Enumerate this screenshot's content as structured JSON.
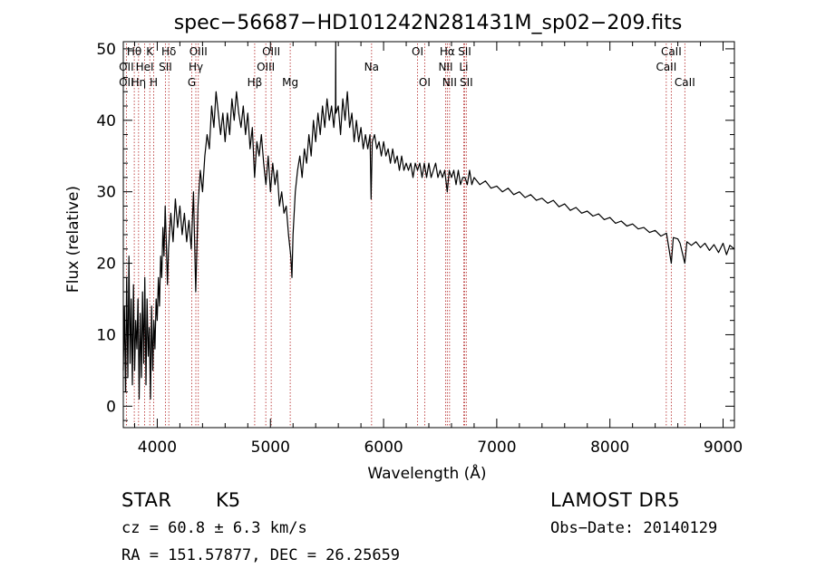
{
  "chart_data": {
    "type": "line",
    "title": "spec−56687−HD101242N281431M_sp02−209.fits",
    "xlabel": "Wavelength (Å)",
    "ylabel": "Flux (relative)",
    "xlim": [
      3700,
      9100
    ],
    "ylim": [
      -3,
      51
    ],
    "xticks": [
      4000,
      5000,
      6000,
      7000,
      8000,
      9000
    ],
    "yticks": [
      0,
      10,
      20,
      30,
      40,
      50
    ],
    "grid": false,
    "series": [
      {
        "points": [
          [
            3700,
            5
          ],
          [
            3710,
            14
          ],
          [
            3720,
            2
          ],
          [
            3730,
            18
          ],
          [
            3740,
            4
          ],
          [
            3750,
            21
          ],
          [
            3760,
            6
          ],
          [
            3770,
            15
          ],
          [
            3780,
            3
          ],
          [
            3790,
            17
          ],
          [
            3800,
            5
          ],
          [
            3810,
            12
          ],
          [
            3820,
            8
          ],
          [
            3830,
            15
          ],
          [
            3840,
            1
          ],
          [
            3850,
            13
          ],
          [
            3860,
            4
          ],
          [
            3870,
            16
          ],
          [
            3880,
            6
          ],
          [
            3890,
            18
          ],
          [
            3900,
            3
          ],
          [
            3910,
            15
          ],
          [
            3920,
            7
          ],
          [
            3930,
            11
          ],
          [
            3940,
            1
          ],
          [
            3950,
            14
          ],
          [
            3960,
            5
          ],
          [
            3970,
            12
          ],
          [
            3980,
            8
          ],
          [
            3990,
            15
          ],
          [
            4000,
            12
          ],
          [
            4010,
            18
          ],
          [
            4020,
            14
          ],
          [
            4030,
            21
          ],
          [
            4040,
            18
          ],
          [
            4050,
            25
          ],
          [
            4060,
            21
          ],
          [
            4070,
            28
          ],
          [
            4080,
            23
          ],
          [
            4090,
            17
          ],
          [
            4100,
            22
          ],
          [
            4120,
            27
          ],
          [
            4140,
            23
          ],
          [
            4160,
            29
          ],
          [
            4180,
            25
          ],
          [
            4200,
            28
          ],
          [
            4220,
            24
          ],
          [
            4240,
            27
          ],
          [
            4260,
            23
          ],
          [
            4280,
            26
          ],
          [
            4300,
            22
          ],
          [
            4320,
            30
          ],
          [
            4340,
            16
          ],
          [
            4360,
            28
          ],
          [
            4380,
            33
          ],
          [
            4400,
            30
          ],
          [
            4420,
            35
          ],
          [
            4440,
            38
          ],
          [
            4460,
            36
          ],
          [
            4480,
            42
          ],
          [
            4500,
            39
          ],
          [
            4520,
            44
          ],
          [
            4540,
            41
          ],
          [
            4560,
            38
          ],
          [
            4580,
            41
          ],
          [
            4600,
            37
          ],
          [
            4620,
            41
          ],
          [
            4640,
            38
          ],
          [
            4660,
            43
          ],
          [
            4680,
            40
          ],
          [
            4700,
            44
          ],
          [
            4720,
            41
          ],
          [
            4740,
            39
          ],
          [
            4760,
            42
          ],
          [
            4780,
            38
          ],
          [
            4800,
            41
          ],
          [
            4820,
            36
          ],
          [
            4840,
            39
          ],
          [
            4860,
            32
          ],
          [
            4880,
            37
          ],
          [
            4900,
            35
          ],
          [
            4920,
            38
          ],
          [
            4940,
            34
          ],
          [
            4960,
            31
          ],
          [
            4980,
            35
          ],
          [
            5000,
            30
          ],
          [
            5020,
            34
          ],
          [
            5040,
            31
          ],
          [
            5060,
            33
          ],
          [
            5080,
            28
          ],
          [
            5100,
            30
          ],
          [
            5120,
            27
          ],
          [
            5140,
            28
          ],
          [
            5160,
            24
          ],
          [
            5180,
            21
          ],
          [
            5190,
            18
          ],
          [
            5200,
            24
          ],
          [
            5220,
            30
          ],
          [
            5240,
            33
          ],
          [
            5260,
            35
          ],
          [
            5280,
            32
          ],
          [
            5300,
            36
          ],
          [
            5320,
            34
          ],
          [
            5340,
            38
          ],
          [
            5360,
            35
          ],
          [
            5380,
            40
          ],
          [
            5400,
            37
          ],
          [
            5420,
            41
          ],
          [
            5440,
            38
          ],
          [
            5460,
            42
          ],
          [
            5480,
            39
          ],
          [
            5500,
            43
          ],
          [
            5520,
            40
          ],
          [
            5540,
            42
          ],
          [
            5560,
            39
          ],
          [
            5575,
            42
          ],
          [
            5577,
            51
          ],
          [
            5579,
            41
          ],
          [
            5600,
            42
          ],
          [
            5620,
            38
          ],
          [
            5640,
            43
          ],
          [
            5660,
            40
          ],
          [
            5680,
            44
          ],
          [
            5700,
            39
          ],
          [
            5720,
            41
          ],
          [
            5740,
            37
          ],
          [
            5760,
            40
          ],
          [
            5780,
            37
          ],
          [
            5800,
            39
          ],
          [
            5820,
            36
          ],
          [
            5840,
            38
          ],
          [
            5860,
            36
          ],
          [
            5880,
            38
          ],
          [
            5890,
            29
          ],
          [
            5900,
            37
          ],
          [
            5920,
            38
          ],
          [
            5940,
            36
          ],
          [
            5960,
            37
          ],
          [
            5980,
            35
          ],
          [
            6000,
            37
          ],
          [
            6020,
            35
          ],
          [
            6040,
            36
          ],
          [
            6060,
            34
          ],
          [
            6080,
            36
          ],
          [
            6100,
            34
          ],
          [
            6120,
            35
          ],
          [
            6140,
            33
          ],
          [
            6160,
            35
          ],
          [
            6180,
            33
          ],
          [
            6200,
            34
          ],
          [
            6220,
            33
          ],
          [
            6240,
            34
          ],
          [
            6260,
            32
          ],
          [
            6280,
            34
          ],
          [
            6300,
            33
          ],
          [
            6320,
            34
          ],
          [
            6340,
            32
          ],
          [
            6360,
            34
          ],
          [
            6380,
            32
          ],
          [
            6400,
            34
          ],
          [
            6420,
            32
          ],
          [
            6440,
            33
          ],
          [
            6460,
            34
          ],
          [
            6480,
            32
          ],
          [
            6500,
            33
          ],
          [
            6520,
            32
          ],
          [
            6540,
            33
          ],
          [
            6563,
            30
          ],
          [
            6580,
            33
          ],
          [
            6600,
            32
          ],
          [
            6620,
            33
          ],
          [
            6640,
            31
          ],
          [
            6660,
            33
          ],
          [
            6680,
            31
          ],
          [
            6700,
            32
          ],
          [
            6720,
            32
          ],
          [
            6740,
            31
          ],
          [
            6760,
            33
          ],
          [
            6780,
            31
          ],
          [
            6800,
            32
          ],
          [
            6850,
            31
          ],
          [
            6900,
            31.5
          ],
          [
            6950,
            30.5
          ],
          [
            7000,
            30.8
          ],
          [
            7050,
            30
          ],
          [
            7100,
            30.5
          ],
          [
            7150,
            29.6
          ],
          [
            7200,
            30
          ],
          [
            7250,
            29.2
          ],
          [
            7300,
            29.6
          ],
          [
            7350,
            28.8
          ],
          [
            7400,
            29.1
          ],
          [
            7450,
            28.4
          ],
          [
            7500,
            28.8
          ],
          [
            7550,
            27.9
          ],
          [
            7600,
            28.3
          ],
          [
            7650,
            27.4
          ],
          [
            7700,
            27.8
          ],
          [
            7750,
            27
          ],
          [
            7800,
            27.3
          ],
          [
            7850,
            26.6
          ],
          [
            7900,
            26.9
          ],
          [
            7950,
            26.1
          ],
          [
            8000,
            26.4
          ],
          [
            8050,
            25.6
          ],
          [
            8100,
            25.9
          ],
          [
            8150,
            25.2
          ],
          [
            8200,
            25.5
          ],
          [
            8250,
            24.8
          ],
          [
            8300,
            25
          ],
          [
            8350,
            24.3
          ],
          [
            8400,
            24.6
          ],
          [
            8450,
            23.8
          ],
          [
            8500,
            24.2
          ],
          [
            8542,
            20
          ],
          [
            8560,
            23.6
          ],
          [
            8600,
            23.4
          ],
          [
            8620,
            22.8
          ],
          [
            8662,
            20
          ],
          [
            8680,
            23
          ],
          [
            8720,
            22.5
          ],
          [
            8760,
            23
          ],
          [
            8800,
            22.2
          ],
          [
            8840,
            22.8
          ],
          [
            8880,
            21.8
          ],
          [
            8920,
            22.6
          ],
          [
            8960,
            21.5
          ],
          [
            9000,
            22.8
          ],
          [
            9030,
            21.2
          ],
          [
            9060,
            22.5
          ],
          [
            9100,
            22
          ]
        ]
      }
    ],
    "lines": [
      {
        "label": "Hθ",
        "x": 3797,
        "row": 0
      },
      {
        "label": "OII",
        "x": 3727,
        "row": 1
      },
      {
        "label": "OII",
        "x": 3727,
        "row": 2
      },
      {
        "label": "K",
        "x": 3934,
        "row": 0
      },
      {
        "label": "Hη",
        "x": 3835,
        "row": 2
      },
      {
        "label": "HeI",
        "x": 3889,
        "row": 1
      },
      {
        "label": "Hδ",
        "x": 4102,
        "row": 0
      },
      {
        "label": "SII",
        "x": 4072,
        "row": 1
      },
      {
        "label": "H",
        "x": 3969,
        "row": 2
      },
      {
        "label": "OIII",
        "x": 4363,
        "row": 0
      },
      {
        "label": "Hγ",
        "x": 4341,
        "row": 1
      },
      {
        "label": "G",
        "x": 4305,
        "row": 2
      },
      {
        "label": "OIII",
        "x": 5007,
        "row": 0
      },
      {
        "label": "OIII",
        "x": 4959,
        "row": 1
      },
      {
        "label": "Hβ",
        "x": 4861,
        "row": 2
      },
      {
        "label": "Mg",
        "x": 5175,
        "row": 2
      },
      {
        "label": "Na",
        "x": 5894,
        "row": 1
      },
      {
        "label": "OI",
        "x": 6300,
        "row": 0
      },
      {
        "label": "OI",
        "x": 6363,
        "row": 2
      },
      {
        "label": "Hα",
        "x": 6563,
        "row": 0
      },
      {
        "label": "NII",
        "x": 6548,
        "row": 1
      },
      {
        "label": "NII",
        "x": 6583,
        "row": 2
      },
      {
        "label": "SII",
        "x": 6716,
        "row": 0
      },
      {
        "label": "Li",
        "x": 6708,
        "row": 1
      },
      {
        "label": "SII",
        "x": 6731,
        "row": 2
      },
      {
        "label": "CaII",
        "x": 8542,
        "row": 0
      },
      {
        "label": "CaII",
        "x": 8498,
        "row": 1
      },
      {
        "label": "CaII",
        "x": 8662,
        "row": 2
      }
    ]
  },
  "info": {
    "obj_class": "STAR",
    "subclass": "K5",
    "survey": "LAMOST DR5",
    "cz": "cz = 60.8 ± 6.3 km/s",
    "obs_date": "Obs−Date: 20140129",
    "radec": "RA = 151.57877, DEC =  26.25659"
  },
  "colors": {
    "spectrum": "#000000",
    "line_markers": "#b22222",
    "axes": "#000000"
  }
}
